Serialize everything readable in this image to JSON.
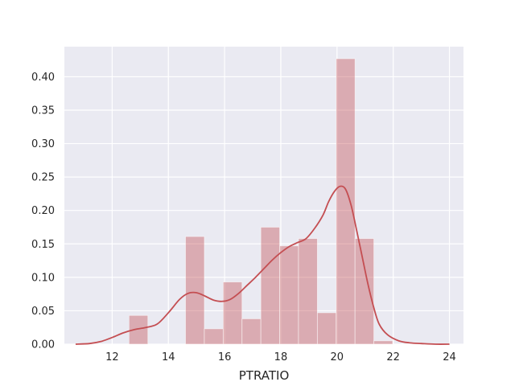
{
  "chart_data": {
    "type": "bar",
    "title": "",
    "xlabel": "PTRATIO",
    "ylabel": "",
    "xlim": [
      10.3,
      24.5
    ],
    "ylim": [
      0,
      0.445
    ],
    "grid": true,
    "x_ticks": [
      12,
      14,
      16,
      18,
      20,
      22,
      24
    ],
    "x_tick_labels": [
      "12",
      "14",
      "16",
      "18",
      "20",
      "22",
      "24"
    ],
    "y_ticks": [
      0.0,
      0.05,
      0.1,
      0.15,
      0.2,
      0.25,
      0.3,
      0.35,
      0.4
    ],
    "y_tick_labels": [
      "0.00",
      "0.05",
      "0.10",
      "0.15",
      "0.20",
      "0.25",
      "0.30",
      "0.35",
      "0.40"
    ],
    "histogram": {
      "bin_edges": [
        12.6,
        13.27,
        13.94,
        14.61,
        15.28,
        15.95,
        16.62,
        17.29,
        17.96,
        18.63,
        19.3,
        19.97,
        20.64,
        21.31,
        21.98
      ],
      "values": [
        0.043,
        0.0,
        0.0,
        0.161,
        0.023,
        0.093,
        0.038,
        0.175,
        0.147,
        0.158,
        0.047,
        0.427,
        0.158,
        0.005
      ],
      "color": "#c44e52"
    },
    "kde": {
      "x": [
        10.7,
        11.2,
        11.6,
        12.0,
        12.4,
        12.8,
        13.2,
        13.6,
        14.0,
        14.4,
        14.7,
        15.0,
        15.3,
        15.6,
        15.9,
        16.2,
        16.5,
        16.8,
        17.1,
        17.4,
        17.7,
        18.0,
        18.3,
        18.6,
        18.9,
        19.2,
        19.5,
        19.7,
        19.9,
        20.1,
        20.3,
        20.5,
        20.7,
        20.9,
        21.1,
        21.3,
        21.5,
        21.8,
        22.2,
        22.6,
        23.0,
        23.5,
        24.0
      ],
      "y": [
        0.0,
        0.001,
        0.004,
        0.01,
        0.017,
        0.022,
        0.025,
        0.03,
        0.047,
        0.067,
        0.076,
        0.077,
        0.072,
        0.066,
        0.064,
        0.067,
        0.076,
        0.088,
        0.1,
        0.113,
        0.126,
        0.137,
        0.146,
        0.152,
        0.158,
        0.173,
        0.193,
        0.213,
        0.228,
        0.236,
        0.232,
        0.208,
        0.17,
        0.13,
        0.09,
        0.056,
        0.03,
        0.014,
        0.005,
        0.002,
        0.001,
        0.0,
        0.0
      ],
      "color": "#c44e52"
    },
    "colors": {
      "plot_background": "#eaeaf2",
      "grid": "#ffffff",
      "bar_fill": "#c44e52",
      "bar_opacity": 0.4,
      "line": "#c44e52"
    }
  }
}
